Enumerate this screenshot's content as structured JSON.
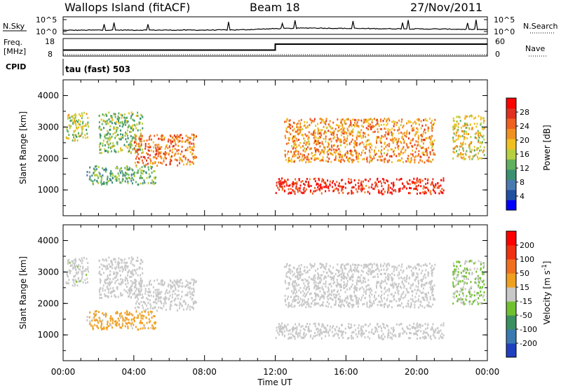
{
  "header": {
    "title": "Wallops Island (fitACF)",
    "beam": "Beam 18",
    "date": "27/Nov/2011"
  },
  "strip": {
    "nsky_label": "N.Sky",
    "nsky_ticks": [
      "10^5",
      "10^0"
    ],
    "nsearch_label": "N.Search",
    "nsearch_ticks": [
      "10^5",
      "10^0"
    ],
    "freq_label_1": "Freq.",
    "freq_label_2": "[MHz]",
    "freq_ticks": [
      "18",
      "8"
    ],
    "nave_label": "Nave",
    "nave_ticks": [
      "60",
      "0"
    ],
    "cpid_label": "CPID",
    "cpid_text": "tau (fast) 503"
  },
  "chart_data": [
    {
      "type": "line",
      "panel": "noise",
      "series": [
        {
          "name": "N.Sky",
          "x": [
            "00:00",
            "02:00",
            "04:00",
            "06:00",
            "08:00",
            "10:00",
            "12:00",
            "14:00",
            "16:00",
            "18:00",
            "20:00",
            "22:00",
            "24:00"
          ],
          "values_log10": [
            0.5,
            0.6,
            0.6,
            0.6,
            0.6,
            0.7,
            1.2,
            1.5,
            1.3,
            1.2,
            1.1,
            1.0,
            0.8
          ]
        },
        {
          "name": "N.Search",
          "x": [
            "00:00",
            "12:00",
            "24:00"
          ],
          "values_log10": [
            0.3,
            0.6,
            0.4
          ]
        }
      ]
    },
    {
      "type": "line",
      "panel": "frequency",
      "series": [
        {
          "name": "Freq.",
          "x": [
            "00:00",
            "12:00",
            "12:00",
            "24:00"
          ],
          "values_mhz": [
            10.5,
            10.5,
            15.2,
            15.2
          ]
        },
        {
          "name": "Nave",
          "x": [
            "00:00",
            "24:00"
          ],
          "values": [
            5,
            5
          ]
        }
      ]
    },
    {
      "type": "heatmap",
      "panel": "power",
      "ylabel": "Slant Range [km]",
      "xlabel": "Time UT",
      "x_ticks": [
        "00:00",
        "04:00",
        "08:00",
        "12:00",
        "16:00",
        "20:00",
        "00:00"
      ],
      "xlim_hours": [
        0,
        24
      ],
      "y_ticks": [
        "1000",
        "2000",
        "3000",
        "4000"
      ],
      "ylim": [
        180,
        4500
      ],
      "colorbar": {
        "label": "Power [dB]",
        "ticks": [
          "28",
          "24",
          "20",
          "16",
          "12",
          "8",
          "4"
        ],
        "range": [
          0,
          32
        ],
        "colors": [
          "#0000ff",
          "#2050a0",
          "#4a7ab0",
          "#3a9070",
          "#60b060",
          "#b8d040",
          "#f0c020",
          "#f09020",
          "#f06020",
          "#e03020",
          "#ff0000"
        ]
      },
      "echo_regions": [
        {
          "t": [
            0.1,
            1.4
          ],
          "range": [
            2600,
            3500
          ],
          "value": 16
        },
        {
          "t": [
            2.0,
            4.5
          ],
          "range": [
            2200,
            3500
          ],
          "value": 14
        },
        {
          "t": [
            4.0,
            7.5
          ],
          "range": [
            1800,
            2800
          ],
          "value": 24
        },
        {
          "t": [
            1.3,
            5.2
          ],
          "range": [
            1200,
            1800
          ],
          "value": 12
        },
        {
          "t": [
            12.0,
            21.5
          ],
          "range": [
            900,
            1400
          ],
          "value": 28
        },
        {
          "t": [
            12.5,
            21.0
          ],
          "range": [
            1900,
            3300
          ],
          "value": 22
        },
        {
          "t": [
            22.0,
            23.8
          ],
          "range": [
            2000,
            3400
          ],
          "value": 18
        }
      ]
    },
    {
      "type": "heatmap",
      "panel": "velocity",
      "ylabel": "Slant Range [km]",
      "xlabel": "Time UT",
      "x_ticks": [
        "00:00",
        "04:00",
        "08:00",
        "12:00",
        "16:00",
        "20:00",
        "00:00"
      ],
      "xlim_hours": [
        0,
        24
      ],
      "y_ticks": [
        "1000",
        "2000",
        "3000",
        "4000"
      ],
      "ylim": [
        180,
        4500
      ],
      "colorbar": {
        "label": "Velocity [m s-1]",
        "ticks": [
          "200",
          "100",
          "50",
          "15",
          "-15",
          "-50",
          "-100",
          "-200"
        ],
        "range": [
          -250,
          250
        ],
        "colors": [
          "#2040c0",
          "#3a7ab0",
          "#3a9060",
          "#70c030",
          "#c8c8c8",
          "#f0a020",
          "#f07020",
          "#f03010",
          "#ff0000"
        ]
      },
      "echo_regions": [
        {
          "t": [
            0.1,
            1.4
          ],
          "range": [
            2600,
            3500
          ],
          "value": -10
        },
        {
          "t": [
            2.0,
            4.5
          ],
          "range": [
            2200,
            3500
          ],
          "value": 0
        },
        {
          "t": [
            4.0,
            7.5
          ],
          "range": [
            1800,
            2800
          ],
          "value": 5
        },
        {
          "t": [
            1.3,
            5.2
          ],
          "range": [
            1200,
            1800
          ],
          "value": 40
        },
        {
          "t": [
            12.0,
            21.5
          ],
          "range": [
            900,
            1400
          ],
          "value": 0
        },
        {
          "t": [
            12.5,
            21.0
          ],
          "range": [
            1900,
            3300
          ],
          "value": -5
        },
        {
          "t": [
            22.0,
            23.8
          ],
          "range": [
            2000,
            3400
          ],
          "value": -30
        }
      ]
    }
  ]
}
